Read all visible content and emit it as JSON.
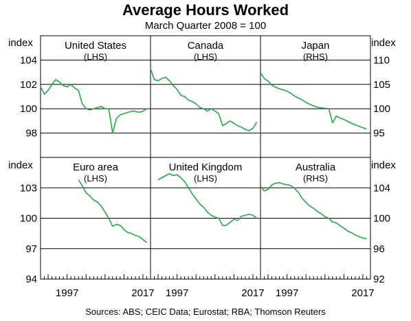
{
  "header": {
    "title": "Average Hours Worked",
    "subtitle": "March Quarter 2008 = 100"
  },
  "footer": {
    "source": "Sources:   ABS; CEIC Data; Eurostat; RBA; Thomson Reuters"
  },
  "colors": {
    "series": "#22aa44",
    "axis": "#000000",
    "grid": "#000000"
  },
  "axes": {
    "left_label": "index",
    "right_label": "index",
    "x_ticks": [
      "1997",
      "2017",
      "1997",
      "2017",
      "1997",
      "2017"
    ],
    "top_left_ticks": [
      "104",
      "102",
      "100",
      "98"
    ],
    "top_right_ticks": [
      "110",
      "105",
      "100",
      "95"
    ],
    "bottom_left_ticks": [
      "103",
      "100",
      "97",
      "94"
    ],
    "bottom_right_ticks": [
      "104",
      "100",
      "96",
      "92"
    ]
  },
  "chart_data": [
    {
      "type": "line",
      "title": "United States",
      "side": "(LHS)",
      "x_range": [
        1990,
        2019
      ],
      "ylim": [
        96,
        106
      ],
      "series": [
        {
          "x": [
            1990,
            1991,
            1992,
            1993,
            1994,
            1995,
            1996,
            1997,
            1998,
            1999,
            2000,
            2001,
            2002,
            2003,
            2004,
            2005,
            2006,
            2007,
            2008,
            2009,
            2010,
            2011,
            2012,
            2013,
            2014,
            2015,
            2016,
            2017,
            2018
          ],
          "values": [
            101.8,
            101.2,
            101.5,
            102.0,
            102.4,
            102.2,
            101.9,
            101.8,
            102.0,
            101.7,
            101.5,
            100.4,
            100.0,
            99.9,
            100.0,
            100.1,
            100.2,
            100.0,
            100.0,
            98.0,
            99.2,
            99.5,
            99.6,
            99.7,
            99.8,
            99.8,
            99.7,
            99.8,
            100.0
          ]
        }
      ]
    },
    {
      "type": "line",
      "title": "Canada",
      "side": "(LHS)",
      "x_range": [
        1990,
        2019
      ],
      "ylim": [
        96,
        106
      ],
      "series": [
        {
          "x": [
            1990,
            1991,
            1992,
            1993,
            1994,
            1995,
            1996,
            1997,
            1998,
            1999,
            2000,
            2001,
            2002,
            2003,
            2004,
            2005,
            2006,
            2007,
            2008,
            2009,
            2010,
            2011,
            2012,
            2013,
            2014,
            2015,
            2016,
            2017,
            2018
          ],
          "values": [
            103.3,
            102.4,
            102.3,
            102.5,
            102.6,
            102.3,
            101.9,
            101.6,
            101.1,
            101.0,
            100.7,
            100.6,
            100.4,
            100.1,
            100.0,
            99.8,
            100.0,
            99.8,
            99.6,
            98.6,
            98.8,
            99.0,
            98.8,
            98.6,
            98.5,
            98.3,
            98.2,
            98.4,
            98.9
          ]
        }
      ]
    },
    {
      "type": "line",
      "title": "Japan",
      "side": "(RHS)",
      "x_range": [
        1990,
        2019
      ],
      "ylim": [
        90,
        115
      ],
      "series": [
        {
          "x": [
            1990,
            1991,
            1992,
            1993,
            1994,
            1995,
            1996,
            1997,
            1998,
            1999,
            2000,
            2001,
            2002,
            2003,
            2004,
            2005,
            2006,
            2007,
            2008,
            2009,
            2010,
            2011,
            2012,
            2013,
            2014,
            2015,
            2016,
            2017,
            2018
          ],
          "values": [
            107.4,
            106.2,
            105.7,
            104.8,
            104.4,
            104.1,
            103.9,
            103.6,
            103.2,
            102.6,
            102.2,
            101.8,
            101.3,
            100.9,
            100.6,
            100.3,
            100.2,
            100.1,
            100.0,
            97.1,
            98.5,
            98.1,
            97.8,
            97.4,
            97.0,
            96.7,
            96.4,
            96.1,
            95.8
          ]
        }
      ]
    },
    {
      "type": "line",
      "title": "Euro area",
      "side": "(LHS)",
      "x_range": [
        1990,
        2019
      ],
      "ylim": [
        94,
        106
      ],
      "series": [
        {
          "x": [
            2000,
            2001,
            2002,
            2003,
            2004,
            2005,
            2006,
            2007,
            2008,
            2009,
            2010,
            2011,
            2012,
            2013,
            2014,
            2015,
            2016,
            2017,
            2018
          ],
          "values": [
            103.8,
            103.2,
            102.5,
            102.2,
            101.8,
            101.6,
            101.2,
            100.6,
            100.0,
            99.2,
            99.4,
            99.3,
            98.9,
            98.6,
            98.5,
            98.3,
            98.2,
            97.9,
            97.6
          ]
        }
      ]
    },
    {
      "type": "line",
      "title": "United Kingdom",
      "side": "(LHS)",
      "x_range": [
        1990,
        2019
      ],
      "ylim": [
        94,
        106
      ],
      "series": [
        {
          "x": [
            1992,
            1993,
            1994,
            1995,
            1996,
            1997,
            1998,
            1999,
            2000,
            2001,
            2002,
            2003,
            2004,
            2005,
            2006,
            2007,
            2008,
            2009,
            2010,
            2011,
            2012,
            2013,
            2014,
            2015,
            2016,
            2017,
            2018
          ],
          "values": [
            103.8,
            104.0,
            104.2,
            104.4,
            104.2,
            104.3,
            104.0,
            103.6,
            103.0,
            102.4,
            101.9,
            101.4,
            101.1,
            100.6,
            100.3,
            100.1,
            100.0,
            99.3,
            99.3,
            99.6,
            99.9,
            99.8,
            100.2,
            100.3,
            100.4,
            100.3,
            100.0
          ]
        }
      ]
    },
    {
      "type": "line",
      "title": "Australia",
      "side": "(RHS)",
      "x_range": [
        1990,
        2019
      ],
      "ylim": [
        92,
        108
      ],
      "series": [
        {
          "x": [
            1990,
            1991,
            1992,
            1993,
            1994,
            1995,
            1996,
            1997,
            1998,
            1999,
            2000,
            2001,
            2002,
            2003,
            2004,
            2005,
            2006,
            2007,
            2008,
            2009,
            2010,
            2011,
            2012,
            2013,
            2014,
            2015,
            2016,
            2017,
            2018
          ],
          "values": [
            104.2,
            103.6,
            103.8,
            104.4,
            104.6,
            104.7,
            104.5,
            104.4,
            104.3,
            103.9,
            103.4,
            102.6,
            102.1,
            101.6,
            101.3,
            100.9,
            100.6,
            100.2,
            100.0,
            99.5,
            99.4,
            99.0,
            98.7,
            98.3,
            98.1,
            97.8,
            97.6,
            97.4,
            97.3
          ]
        }
      ]
    }
  ]
}
